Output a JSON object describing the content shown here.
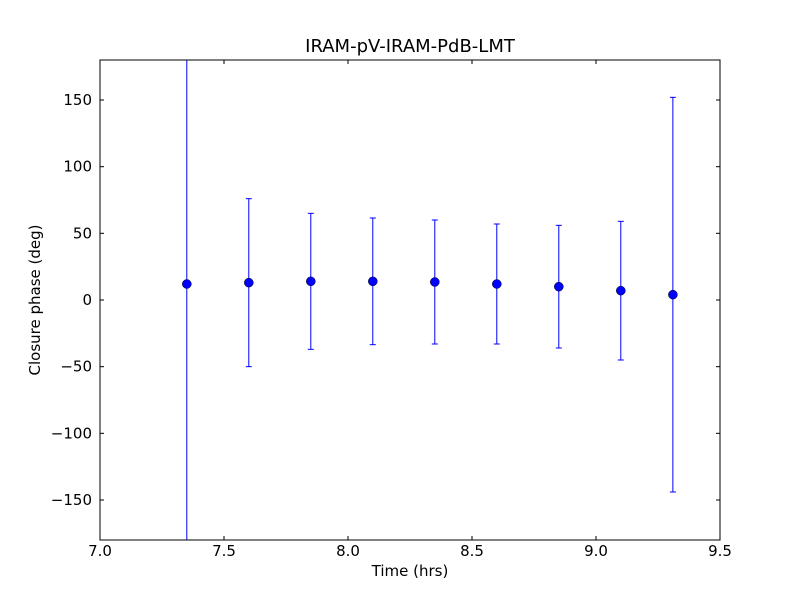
{
  "chart_data": {
    "type": "errorbar",
    "title": "IRAM-pV-IRAM-PdB-LMT",
    "xlabel": "Time (hrs)",
    "ylabel": "Closure phase (deg)",
    "x": [
      7.35,
      7.6,
      7.85,
      8.1,
      8.35,
      8.6,
      8.85,
      9.1,
      9.31
    ],
    "values": [
      12,
      13,
      14,
      14,
      13.5,
      12,
      10,
      7,
      4
    ],
    "errors": [
      200,
      63,
      51,
      47.5,
      46.5,
      45,
      46,
      52,
      148
    ],
    "color": "#0000ff",
    "xlim": [
      7,
      9.5
    ],
    "xticks": [
      {
        "value": 7,
        "label": "7.0"
      },
      7.5,
      {
        "value": 8,
        "label": "8.0"
      },
      8.5,
      {
        "value": 9,
        "label": "9.0"
      },
      9.5
    ],
    "ylim": [
      -180,
      180
    ],
    "yticks": [
      {
        "value": -150,
        "label": "−150"
      },
      {
        "value": -100,
        "label": "−100"
      },
      {
        "value": -50,
        "label": "−50"
      },
      0,
      50,
      100,
      150
    ]
  }
}
